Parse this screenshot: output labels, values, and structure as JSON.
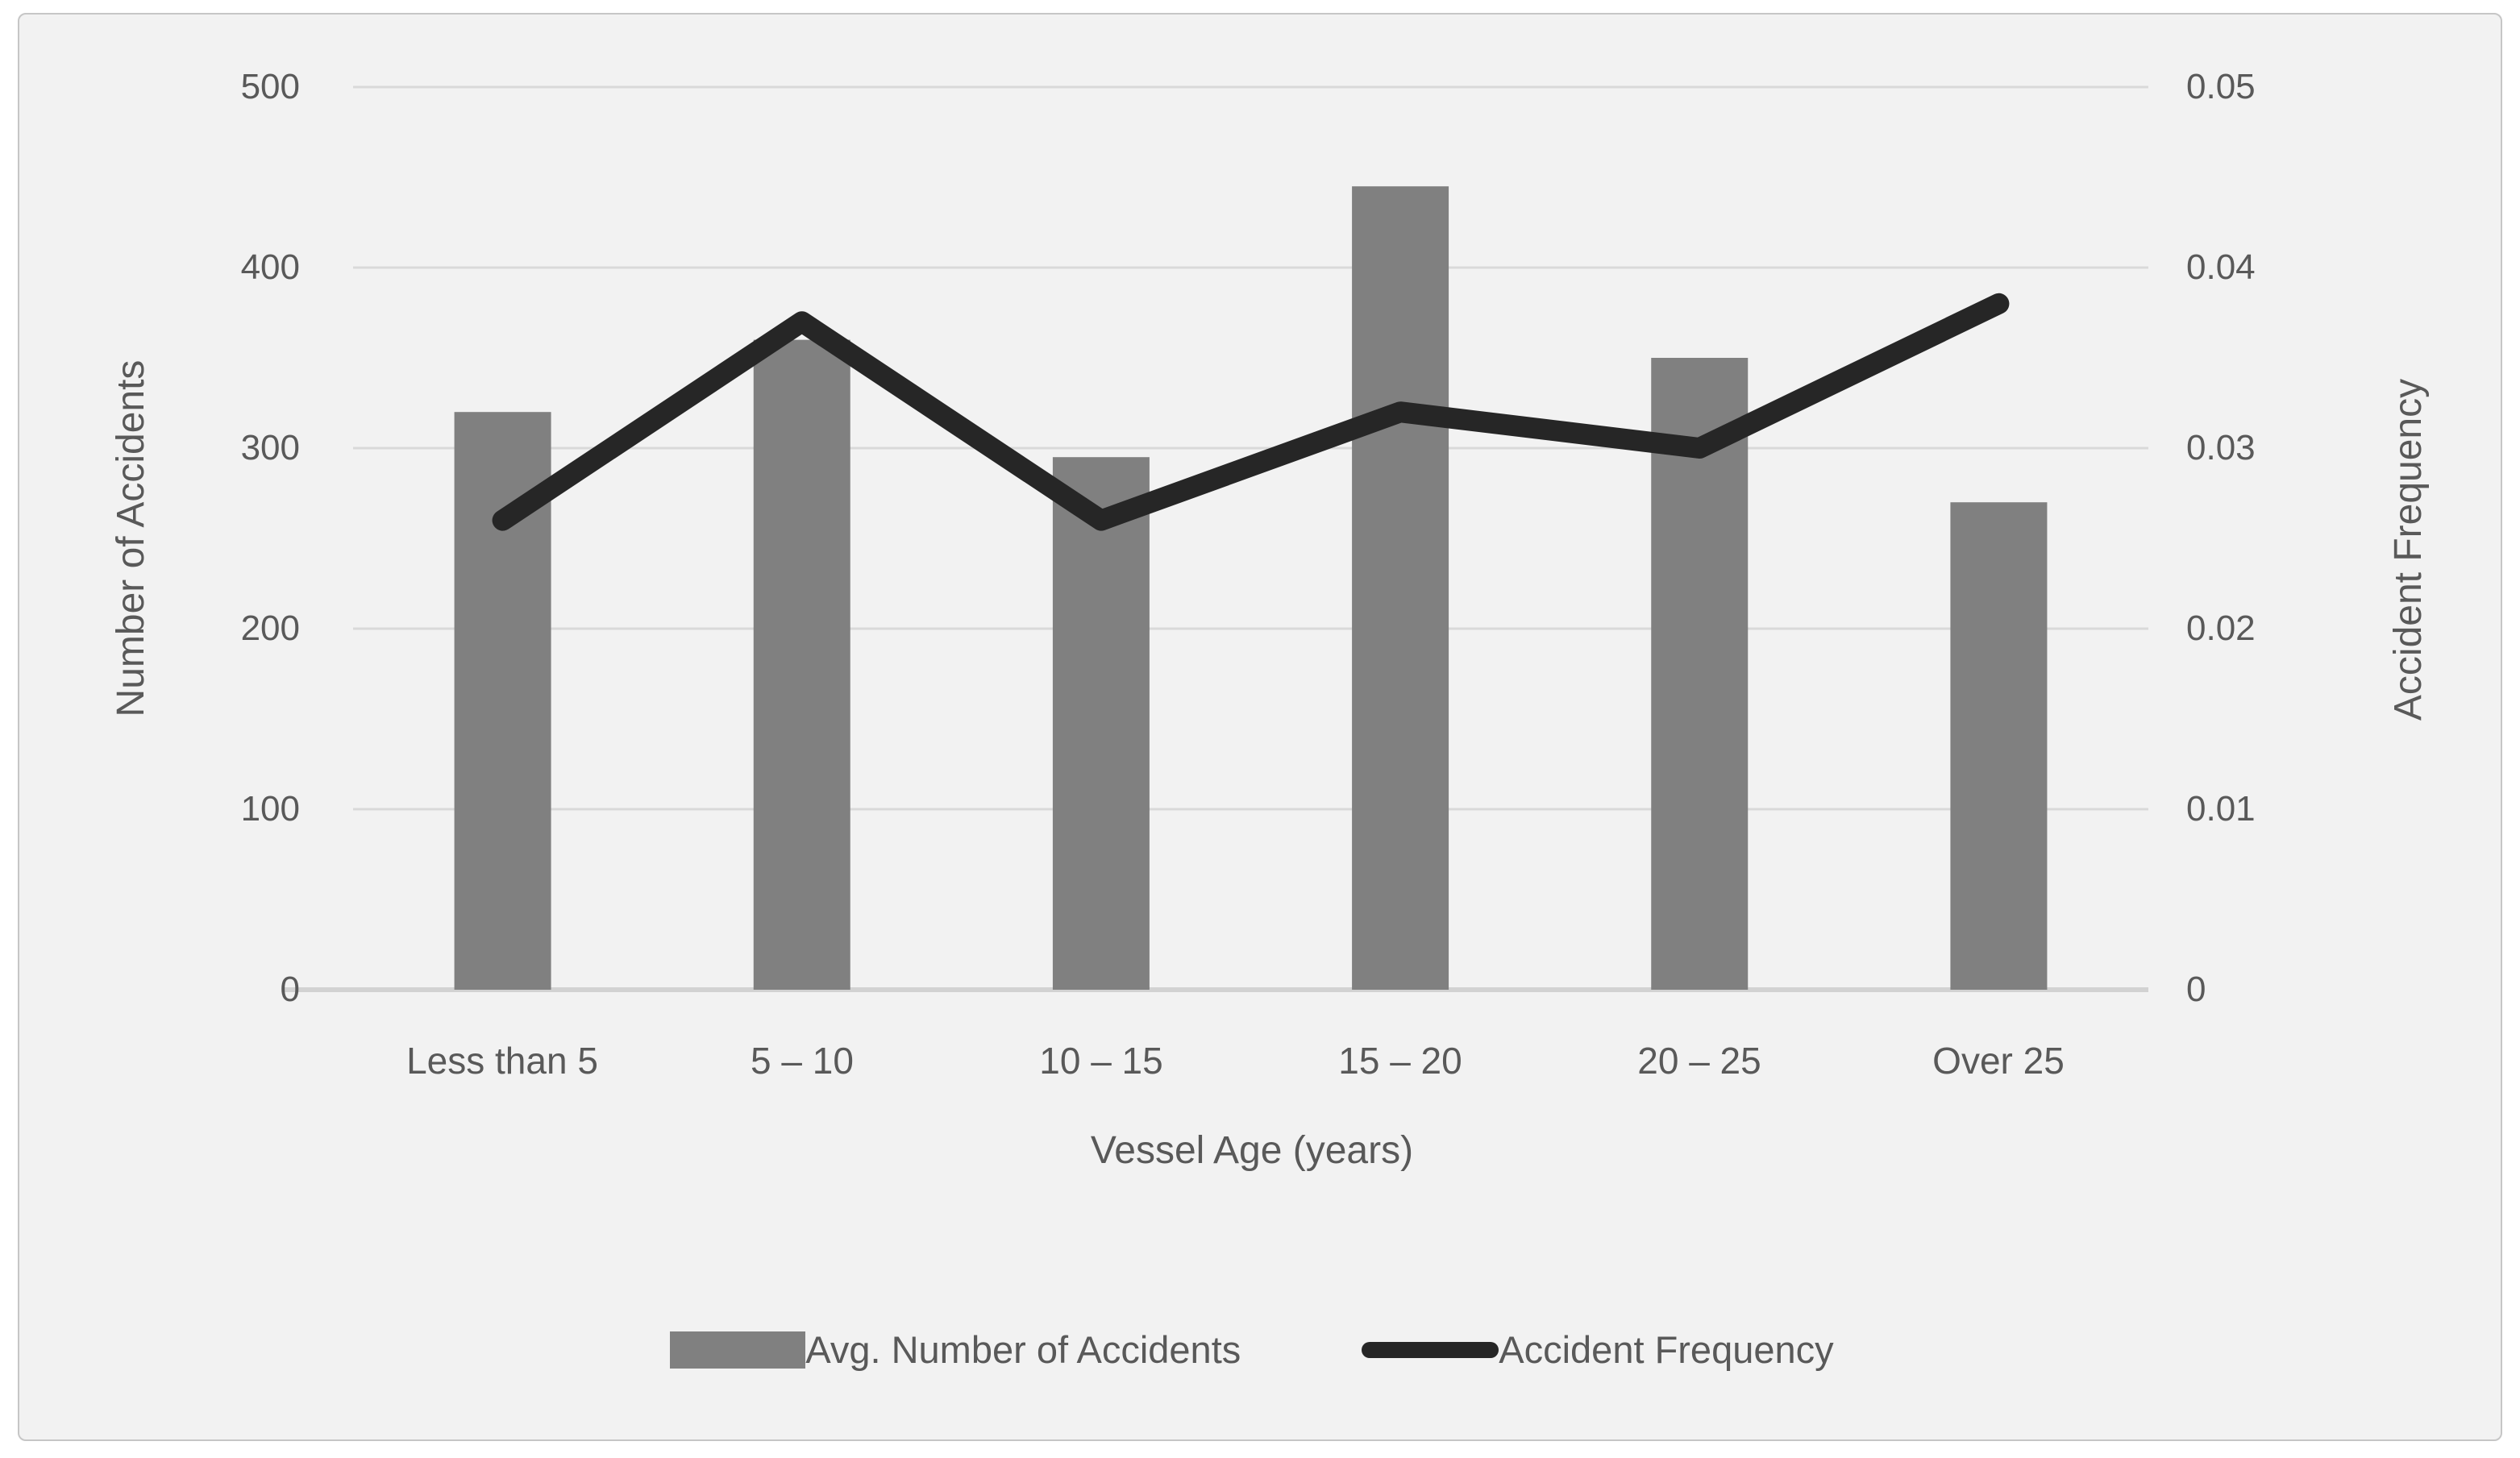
{
  "chart_data": {
    "type": "bar",
    "subtype": "combo-bar-line-dual-axis",
    "categories": [
      "Less than 5",
      "5 – 10",
      "10 – 15",
      "15 – 20",
      "20 – 25",
      "Over 25"
    ],
    "series": [
      {
        "name": "Avg. Number of Accidents",
        "type": "bar",
        "axis": "left",
        "color": "#808080",
        "values": [
          320,
          360,
          295,
          445,
          350,
          270
        ]
      },
      {
        "name": "Accident Frequency",
        "type": "line",
        "axis": "right",
        "color": "#262626",
        "values": [
          0.026,
          0.037,
          0.026,
          0.032,
          0.03,
          0.038
        ]
      }
    ],
    "title": "",
    "xlabel": "Vessel Age (years)",
    "left_axis": {
      "label": "Number of Accidents",
      "min": 0,
      "max": 500,
      "ticks": [
        "500",
        "400",
        "300",
        "200",
        "100",
        "0"
      ]
    },
    "right_axis": {
      "label": "Accident Frequency",
      "min": 0,
      "max": 0.05,
      "ticks": [
        "0.05",
        "0.04",
        "0.03",
        "0.02",
        "0.01",
        "0"
      ]
    },
    "grid": true,
    "legend_position": "bottom"
  },
  "legend": {
    "bar_label": "Avg. Number of Accidents",
    "line_label": "Accident Frequency"
  },
  "colors": {
    "background": "#f2f2f2",
    "panel_border": "#c6c6c6",
    "bar": "#808080",
    "line": "#262626",
    "gridline": "#d9d9d9",
    "axis_line": "#d2d2d2",
    "text": "#595959"
  }
}
